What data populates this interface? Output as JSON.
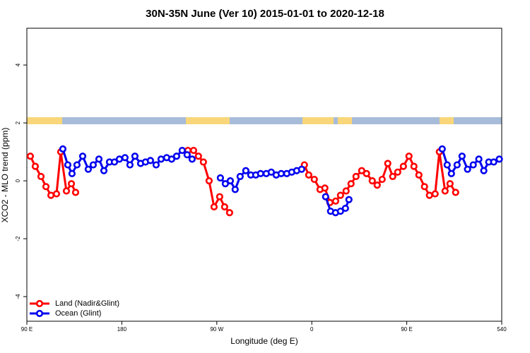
{
  "chart_data": {
    "type": "line",
    "title": "30N-35N June (Ver 10)   2015-01-01 to 2020-12-18",
    "xlabel": "Longitude (deg E)",
    "ylabel": "XCO2 - MLO trend (ppm)",
    "xlim": [
      90,
      540
    ],
    "ylim": [
      -4.85,
      5.27
    ],
    "xticks": [
      {
        "value": 90,
        "label": "90 E"
      },
      180,
      {
        "value": 270,
        "label": "90 W"
      },
      {
        "value": 360,
        "label": "0"
      },
      {
        "value": 450,
        "label": "90 E"
      },
      540
    ],
    "yticks": [
      -4,
      -2,
      0,
      2,
      4
    ],
    "legend": "bottomleft",
    "series": [
      {
        "name": "Land (Nadir&Glint)",
        "color": "#ff0000",
        "x": [
          93.3,
          98.0,
          103.4,
          108.1,
          112.8,
          118.1,
          122.1,
          127.5,
          132.2,
          136.2,
          200,
          242.6,
          248.0,
          252.6,
          257.3,
          262.7,
          267.4,
          272.7,
          277.4,
          282.1,
          320,
          353.0,
          357.1,
          362.4,
          367.8,
          372.4,
          377.2,
          382.6,
          387.2,
          392.5,
          397.2,
          401.9,
          407.3,
          411.9,
          417.3,
          422.0,
          426.7,
          432.0,
          436.7,
          441.4,
          446.8,
          452.1,
          456.8,
          461.5,
          466.8,
          471.5,
          476.9,
          480.9,
          486.3,
          491.0,
          496.3
        ],
        "values": [
          0.85,
          0.5,
          0.15,
          -0.2,
          -0.5,
          -0.45,
          1.0,
          -0.35,
          -0.1,
          -0.4,
          null,
          1.05,
          1.05,
          0.85,
          0.65,
          0.0,
          -0.9,
          -0.55,
          -0.9,
          -1.1,
          null,
          0.55,
          0.2,
          0.05,
          -0.3,
          -0.25,
          -0.75,
          -0.7,
          -0.5,
          -0.35,
          -0.1,
          0.15,
          0.35,
          0.25,
          0.0,
          -0.15,
          0.05,
          0.6,
          0.15,
          0.3,
          0.5,
          0.85,
          0.5,
          0.2,
          -0.2,
          -0.5,
          -0.45,
          1.0,
          -0.35,
          -0.1,
          -0.4
        ]
      },
      {
        "name": "Ocean (Glint)",
        "color": "#0000ee",
        "x": [
          124.1,
          128.8,
          132.8,
          137.5,
          142.9,
          148.2,
          152.9,
          158.3,
          163.0,
          168.3,
          173.0,
          177.7,
          183.0,
          187.7,
          192.4,
          197.8,
          202.4,
          207.1,
          212.5,
          217.2,
          222.5,
          227.2,
          231.9,
          237.2,
          241.9,
          246.6,
          260,
          273.4,
          278.1,
          282.8,
          287.4,
          292.1,
          297.5,
          302.2,
          306.9,
          311.5,
          316.9,
          321.6,
          326.3,
          331.0,
          336.3,
          341.0,
          345.7,
          350.4,
          360,
          373.1,
          377.8,
          382.5,
          387.2,
          391.9,
          395.2,
          440,
          483.6,
          488.3,
          492.3,
          497.7,
          502.4,
          507.6,
          513.0,
          518.3,
          523.0,
          527.7,
          532.4,
          537.7
        ],
        "values": [
          1.1,
          0.55,
          0.25,
          0.55,
          0.85,
          0.4,
          0.55,
          0.75,
          0.35,
          0.65,
          0.65,
          0.75,
          0.8,
          0.55,
          0.85,
          0.6,
          0.65,
          0.7,
          0.55,
          0.75,
          0.8,
          0.75,
          0.85,
          1.05,
          0.9,
          0.75,
          null,
          0.1,
          -0.1,
          0.0,
          -0.3,
          0.15,
          0.35,
          0.2,
          0.2,
          0.25,
          0.25,
          0.3,
          0.2,
          0.25,
          0.25,
          0.3,
          0.35,
          0.4,
          null,
          -0.55,
          -1.05,
          -1.1,
          -1.05,
          -0.95,
          -0.65,
          null,
          1.1,
          0.55,
          0.25,
          0.55,
          0.85,
          0.4,
          0.55,
          0.75,
          0.35,
          0.65,
          0.65,
          0.75
        ]
      }
    ]
  }
}
